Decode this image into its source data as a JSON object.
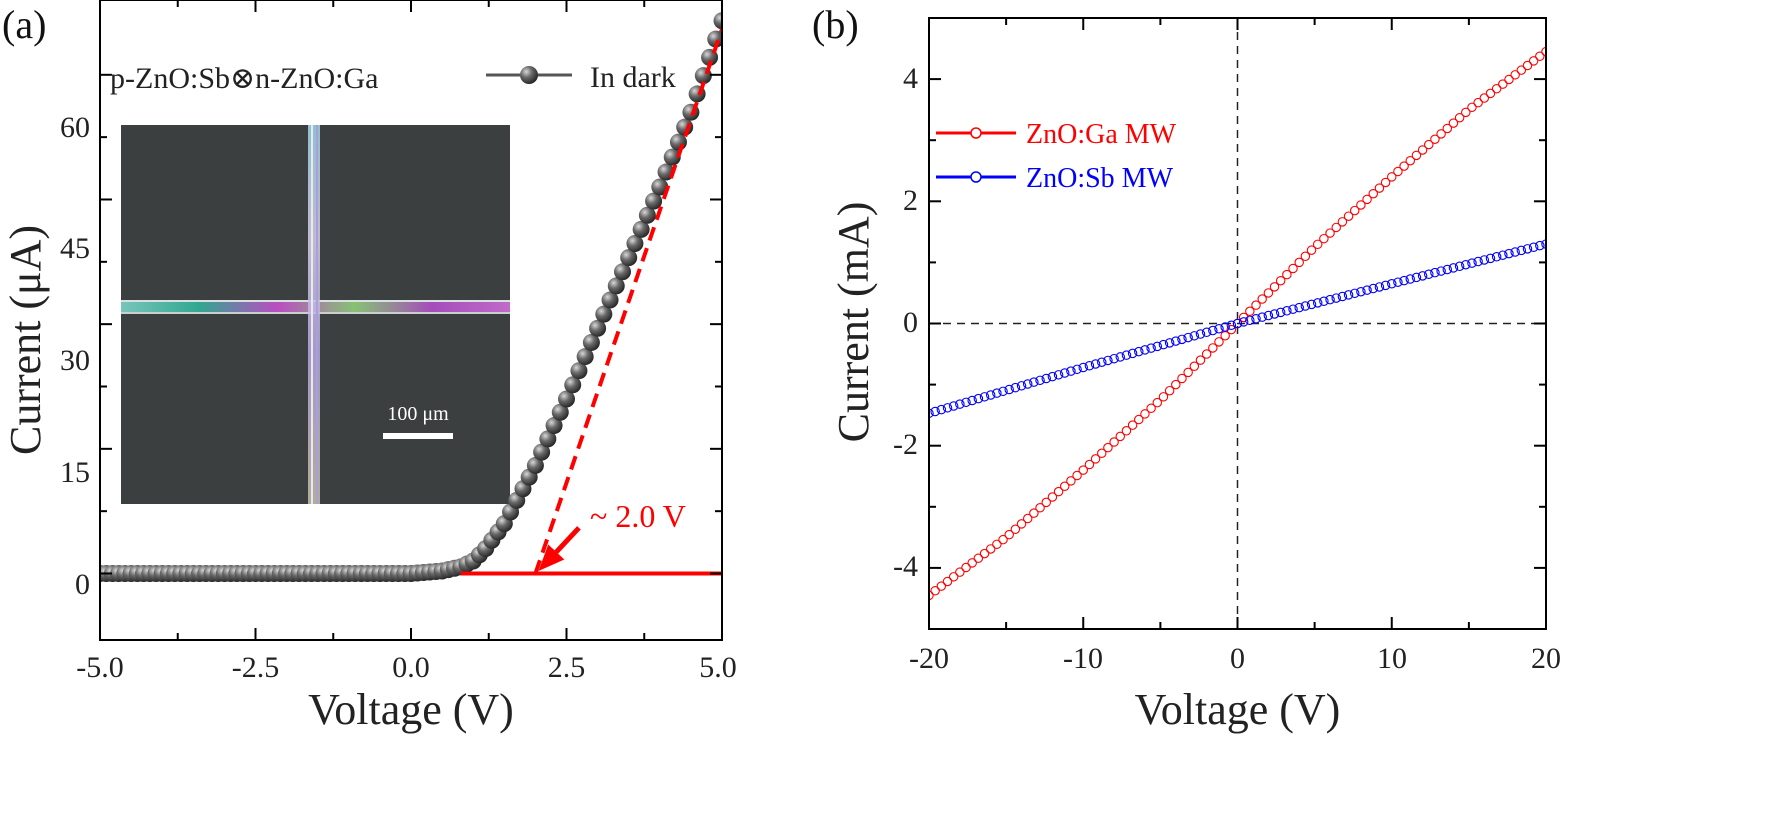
{
  "chart_data": [
    {
      "panel": "(a)",
      "type": "scatter",
      "title": "",
      "xlabel": "Voltage (V)",
      "ylabel": "Current (μA)",
      "xlim": [
        -5.0,
        5.0
      ],
      "ylim": [
        -8,
        69
      ],
      "xticks": [
        "-5.0",
        "-2.5",
        "0.0",
        "2.5",
        "5.0"
      ],
      "xtick_values": [
        -5.0,
        -2.5,
        0.0,
        2.5,
        5.0
      ],
      "yticks": [
        "0",
        "15",
        "30",
        "45",
        "60"
      ],
      "ytick_values": [
        0,
        15,
        30,
        45,
        60
      ],
      "device_label": "p-ZnO:Sb⊗n-ZnO:Ga",
      "legend": [
        {
          "name": "In dark",
          "color": "#555555",
          "marker": "sphere"
        }
      ],
      "legend_position": "top-right",
      "series": [
        {
          "name": "In dark",
          "color": "#555555",
          "x_start": -5.0,
          "x_end": 5.0,
          "x_step": 0.1,
          "curve": {
            "x": [
              -5.0,
              0.0,
              0.5,
              0.8,
              1.0,
              1.2,
              1.5,
              2.0,
              2.5,
              3.0,
              3.5,
              4.0,
              4.5,
              5.0
            ],
            "y": [
              0,
              0,
              0.3,
              0.8,
              1.5,
              3.0,
              6.0,
              13.0,
              21.0,
              29.5,
              38.0,
              46.5,
              55.5,
              66.5
            ]
          }
        }
      ],
      "annotations": {
        "zero_line": {
          "y": 0,
          "x_from": 0.8,
          "x_to": 5.0,
          "color": "#ff0000"
        },
        "fit_line": {
          "x": [
            2.0,
            5.0
          ],
          "y": [
            0,
            65.5
          ],
          "color": "#ff0000",
          "style": "dashed"
        },
        "threshold_arrow": {
          "from": [
            2.7,
            5.5
          ],
          "to": [
            2.05,
            0.3
          ],
          "color": "#ff0000"
        },
        "threshold_label": {
          "text": "~ 2.0 V",
          "x": 2.5,
          "y": 9.5,
          "color": "#ff0000"
        }
      },
      "inset": {
        "scale_bar_label": "100 μm"
      }
    },
    {
      "panel": "(b)",
      "type": "scatter",
      "title": "",
      "xlabel": "Voltage (V)",
      "ylabel": "Current (mA)",
      "xlim": [
        -20,
        20
      ],
      "ylim": [
        -5,
        5
      ],
      "xticks": [
        "-20",
        "-10",
        "0",
        "10",
        "20"
      ],
      "xtick_values": [
        -20,
        -10,
        0,
        10,
        20
      ],
      "yticks": [
        "-4",
        "-2",
        "0",
        "2",
        "4"
      ],
      "ytick_values": [
        -4,
        -2,
        0,
        2,
        4
      ],
      "legend_position": "top-left",
      "reference_lines": {
        "x": 0,
        "y": 0,
        "style": "dashed"
      },
      "series": [
        {
          "name": "ZnO:Ga MW",
          "color": "#ff0000",
          "marker": "open-circle",
          "x": [
            -20,
            -15,
            -10,
            -5,
            0,
            5,
            10,
            15,
            20
          ],
          "y": [
            -4.45,
            -3.5,
            -2.4,
            -1.25,
            0,
            1.25,
            2.4,
            3.5,
            4.45
          ]
        },
        {
          "name": "ZnO:Sb MW",
          "color": "#0000ff",
          "marker": "open-circle",
          "x": [
            -20,
            -10,
            0,
            10,
            20
          ],
          "y": [
            -1.47,
            -0.72,
            0,
            0.65,
            1.3
          ]
        }
      ]
    }
  ]
}
